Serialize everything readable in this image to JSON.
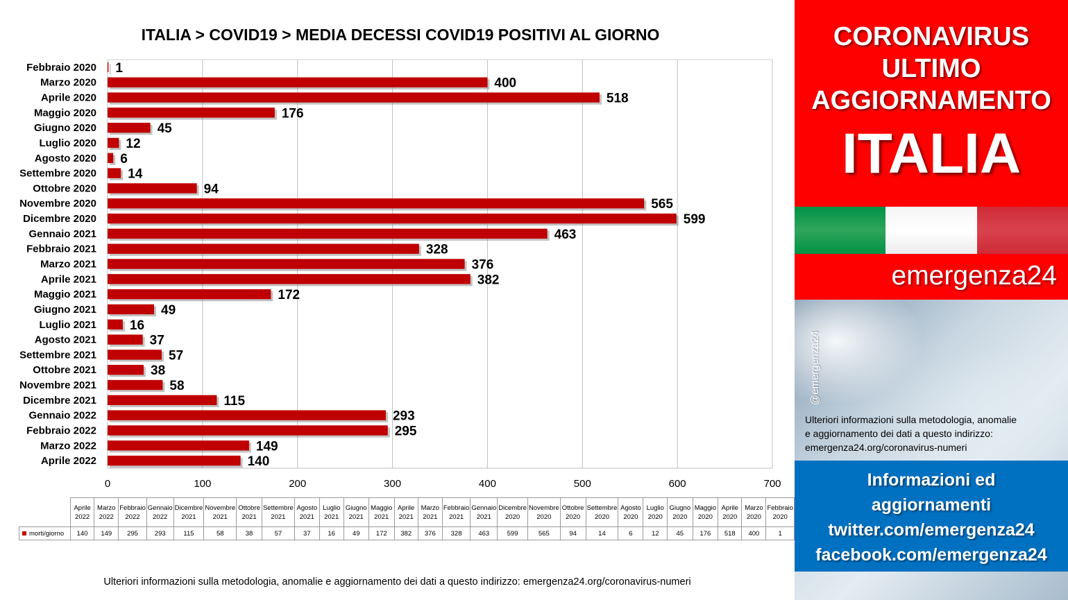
{
  "chart_data": {
    "type": "bar",
    "orientation": "horizontal",
    "title": "ITALIA >  COVID19 > MEDIA DECESSI COVID19 POSITIVI AL GIORNO",
    "categories": [
      "Febbraio 2020",
      "Marzo 2020",
      "Aprile 2020",
      "Maggio 2020",
      "Giugno 2020",
      "Luglio 2020",
      "Agosto 2020",
      "Settembre 2020",
      "Ottobre 2020",
      "Novembre 2020",
      "Dicembre 2020",
      "Gennaio 2021",
      "Febbraio 2021",
      "Marzo 2021",
      "Aprile 2021",
      "Maggio 2021",
      "Giugno 2021",
      "Luglio 2021",
      "Agosto 2021",
      "Settembre 2021",
      "Ottobre 2021",
      "Novembre 2021",
      "Dicembre 2021",
      "Gennaio 2022",
      "Febbraio 2022",
      "Marzo 2022",
      "Aprile 2022"
    ],
    "series": [
      {
        "name": "morti/giorno",
        "values": [
          1,
          400,
          518,
          176,
          45,
          12,
          6,
          14,
          94,
          565,
          599,
          463,
          328,
          376,
          382,
          172,
          49,
          16,
          37,
          57,
          38,
          58,
          115,
          293,
          295,
          149,
          140
        ]
      }
    ],
    "xlim": [
      0,
      700
    ],
    "xticks": [
      "0",
      "100",
      "200",
      "300",
      "400",
      "500",
      "600",
      "700"
    ],
    "grid": true,
    "bar_color": "#c00000",
    "table": {
      "columns": [
        "Aprile 2022",
        "Marzo 2022",
        "Febbraio 2022",
        "Gennaio 2022",
        "Dicembre 2021",
        "Novembre 2021",
        "Ottobre 2021",
        "Settembre 2021",
        "Agosto 2021",
        "Luglio 2021",
        "Giugno 2021",
        "Maggio 2021",
        "Aprile 2021",
        "Marzo 2021",
        "Febbraio 2021",
        "Gennaio 2021",
        "Dicembre 2020",
        "Novembre 2020",
        "Ottobre 2020",
        "Settembre 2020",
        "Agosto 2020",
        "Luglio 2020",
        "Giugno 2020",
        "Maggio 2020",
        "Aprile 2020",
        "Marzo 2020",
        "Febbraio 2020"
      ],
      "series_label": "morti/giorno",
      "values": [
        140,
        149,
        295,
        293,
        115,
        58,
        38,
        57,
        37,
        16,
        49,
        172,
        382,
        376,
        328,
        463,
        599,
        565,
        94,
        14,
        6,
        12,
        45,
        176,
        518,
        400,
        1
      ]
    }
  },
  "footer_note": "Ulteriori informazioni sulla metodologia, anomalie e aggiornamento dei dati a questo indirizzo: emergenza24.org/coronavirus-numeri",
  "sidebar": {
    "banner_lines": [
      "CORONAVIRUS",
      "ULTIMO",
      "AGGIORNAMENTO"
    ],
    "country": "ITALIA",
    "flag_colors": [
      "#009246",
      "#ffffff",
      "#ce2b37"
    ],
    "brand": "emergenza24",
    "handle": "@emergenza24",
    "note_lines": [
      "Ulteriori informazioni sulla metodologia, anomalie",
      "e aggiornamento dei dati a questo indirizzo:",
      "emergenza24.org/coronavirus-numeri"
    ],
    "info_lines": [
      "Informazioni ed",
      "aggiornamenti",
      "twitter.com/emergenza24",
      "facebook.com/emergenza24"
    ],
    "accent_red": "#ff0000",
    "accent_blue": "#0070c0"
  }
}
